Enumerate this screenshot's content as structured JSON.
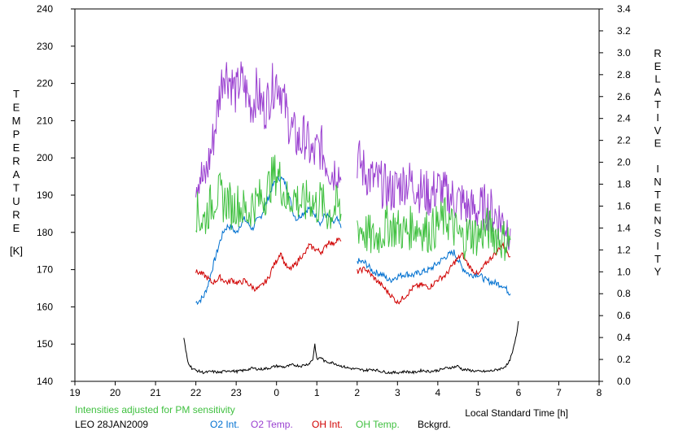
{
  "chart_data": {
    "type": "line",
    "note_text": "Intensities adjusted for PM sensitivity",
    "station_text": "LEO 28JAN2009",
    "xlabel": "Local Standard Time [h]",
    "ylabel_left": "TEMPERATURE",
    "ylabel_left_unit": "[K]",
    "ylabel_right": "RELATIVE INTENSITY",
    "xlim": [
      19,
      32
    ],
    "x_tick_values": [
      19,
      20,
      21,
      22,
      23,
      24,
      25,
      26,
      27,
      28,
      29,
      30,
      31,
      32
    ],
    "x_tick_labels": [
      "19",
      "20",
      "21",
      "22",
      "23",
      "0",
      "1",
      "2",
      "3",
      "4",
      "5",
      "6",
      "7",
      "8"
    ],
    "ylim_left": [
      140,
      240
    ],
    "y_left_ticks": [
      140,
      150,
      160,
      170,
      180,
      190,
      200,
      210,
      220,
      230,
      240
    ],
    "ylim_right": [
      0,
      3.4
    ],
    "y_right_ticks": [
      "0.0",
      "0.2",
      "0.4",
      "0.6",
      "0.8",
      "1.0",
      "1.2",
      "1.4",
      "1.6",
      "1.8",
      "2.0",
      "2.2",
      "2.4",
      "2.6",
      "2.8",
      "3.0",
      "3.2",
      "3.4"
    ],
    "grid": false,
    "legend_position": "bottom",
    "series": [
      {
        "name": "O2 Int.",
        "color": "#0070d0",
        "axis": "right",
        "segments": [
          {
            "x": [
              22.0,
              22.1,
              22.2,
              22.3,
              22.4,
              22.5,
              22.6,
              22.7,
              22.8,
              22.9,
              23.0,
              23.1,
              23.2,
              23.3,
              23.4,
              23.5,
              23.6,
              23.7,
              23.8,
              23.9,
              24.0,
              24.1,
              24.2,
              24.3,
              24.4,
              24.5,
              24.6,
              24.7,
              24.8,
              24.9,
              25.0,
              25.1,
              25.2,
              25.3,
              25.4,
              25.5,
              25.6
            ],
            "y": [
              0.72,
              0.74,
              0.78,
              0.88,
              1.02,
              1.15,
              1.28,
              1.38,
              1.42,
              1.4,
              1.35,
              1.43,
              1.48,
              1.44,
              1.39,
              1.46,
              1.5,
              1.58,
              1.68,
              1.78,
              1.84,
              1.86,
              1.82,
              1.72,
              1.55,
              1.48,
              1.52,
              1.55,
              1.58,
              1.55,
              1.5,
              1.44,
              1.52,
              1.5,
              1.44,
              1.48,
              1.4
            ]
          },
          {
            "x": [
              26.0,
              26.2,
              26.4,
              26.6,
              26.8,
              27.0,
              27.2,
              27.4,
              27.6,
              27.8,
              28.0,
              28.2,
              28.4,
              28.6,
              28.8,
              29.0,
              29.2,
              29.4,
              29.6,
              29.8
            ],
            "y": [
              1.1,
              1.08,
              1.0,
              0.98,
              0.92,
              0.96,
              0.98,
              0.97,
              1.0,
              1.02,
              1.08,
              1.14,
              1.18,
              1.04,
              0.97,
              0.98,
              0.92,
              0.9,
              0.88,
              0.8
            ]
          }
        ]
      },
      {
        "name": "O2 Temp.",
        "color": "#9a40d0",
        "axis": "left",
        "segments": [
          {
            "x": [
              22.0,
              22.1,
              22.2,
              22.3,
              22.4,
              22.5,
              22.6,
              22.7,
              22.8,
              22.9,
              23.0,
              23.1,
              23.2,
              23.3,
              23.4,
              23.5,
              23.6,
              23.7,
              23.8,
              23.9,
              24.0,
              24.1,
              24.2,
              24.3,
              24.4,
              24.5,
              24.6,
              24.7,
              24.8,
              24.9,
              25.0,
              25.1,
              25.2,
              25.3,
              25.4,
              25.5,
              25.6
            ],
            "y": [
              194,
              196,
              193,
              198,
              203,
              210,
              218,
              224,
              222,
              220,
              217,
              221,
              219,
              216,
              214,
              218,
              215,
              213,
              216,
              219,
              221,
              219,
              214,
              210,
              207,
              205,
              204,
              206,
              203,
              200,
              202,
              203,
              200,
              198,
              196,
              198,
              194
            ]
          },
          {
            "x": [
              26.0,
              26.2,
              26.4,
              26.6,
              26.8,
              27.0,
              27.2,
              27.4,
              27.6,
              27.8,
              28.0,
              28.2,
              28.4,
              28.6,
              28.8,
              29.0,
              29.2,
              29.4,
              29.6,
              29.8
            ],
            "y": [
              200,
              196,
              194,
              193,
              191,
              192,
              194,
              193,
              191,
              190,
              192,
              190,
              189,
              188,
              186,
              186,
              187,
              185,
              183,
              181
            ]
          }
        ]
      },
      {
        "name": "OH Int.",
        "color": "#d00000",
        "axis": "right",
        "segments": [
          {
            "x": [
              22.0,
              22.1,
              22.2,
              22.3,
              22.4,
              22.5,
              22.6,
              22.7,
              22.8,
              22.9,
              23.0,
              23.1,
              23.2,
              23.3,
              23.4,
              23.5,
              23.6,
              23.7,
              23.8,
              23.9,
              24.0,
              24.1,
              24.2,
              24.3,
              24.4,
              24.5,
              24.6,
              24.7,
              24.8,
              24.9,
              25.0,
              25.1,
              25.2,
              25.3,
              25.4,
              25.5,
              25.6
            ],
            "y": [
              1.0,
              0.99,
              0.97,
              0.94,
              0.9,
              0.92,
              0.95,
              0.92,
              0.9,
              0.93,
              0.9,
              0.9,
              0.92,
              0.89,
              0.86,
              0.84,
              0.86,
              0.9,
              0.94,
              1.04,
              1.1,
              1.18,
              1.08,
              1.02,
              1.04,
              1.08,
              1.14,
              1.16,
              1.24,
              1.22,
              1.2,
              1.18,
              1.22,
              1.28,
              1.25,
              1.3,
              1.28
            ]
          },
          {
            "x": [
              26.0,
              26.2,
              26.4,
              26.6,
              26.8,
              27.0,
              27.2,
              27.4,
              27.6,
              27.8,
              28.0,
              28.2,
              28.4,
              28.6,
              28.8,
              29.0,
              29.2,
              29.4,
              29.6,
              29.8
            ],
            "y": [
              1.0,
              1.03,
              0.95,
              0.88,
              0.8,
              0.72,
              0.78,
              0.86,
              0.88,
              0.86,
              0.93,
              0.97,
              1.08,
              1.16,
              1.04,
              0.97,
              1.08,
              1.16,
              1.25,
              1.14
            ]
          }
        ]
      },
      {
        "name": "OH Temp.",
        "color": "#40c040",
        "axis": "left",
        "segments": [
          {
            "x": [
              22.0,
              22.1,
              22.2,
              22.3,
              22.4,
              22.5,
              22.6,
              22.7,
              22.8,
              22.9,
              23.0,
              23.1,
              23.2,
              23.3,
              23.4,
              23.5,
              23.6,
              23.7,
              23.8,
              23.9,
              24.0,
              24.1,
              24.2,
              24.3,
              24.4,
              24.5,
              24.6,
              24.7,
              24.8,
              24.9,
              25.0,
              25.1,
              25.2,
              25.3,
              25.4,
              25.5,
              25.6
            ],
            "y": [
              186,
              184,
              183,
              186,
              188,
              190,
              190,
              188,
              189,
              186,
              188,
              187,
              186,
              185,
              188,
              188,
              189,
              190,
              192,
              195,
              196,
              194,
              190,
              188,
              190,
              189,
              188,
              187,
              190,
              188,
              187,
              189,
              186,
              185,
              186,
              187,
              185
            ]
          },
          {
            "x": [
              26.0,
              26.2,
              26.4,
              26.6,
              26.8,
              27.0,
              27.2,
              27.4,
              27.6,
              27.8,
              28.0,
              28.2,
              28.4,
              28.6,
              28.8,
              29.0,
              29.2,
              29.4,
              29.6,
              29.8
            ],
            "y": [
              182,
              180,
              178,
              180,
              182,
              181,
              180,
              182,
              181,
              180,
              182,
              184,
              181,
              178,
              180,
              179,
              181,
              180,
              178,
              178
            ]
          }
        ]
      },
      {
        "name": "Bckgrd.",
        "color": "#000000",
        "axis": "right",
        "segments": [
          {
            "x": [
              21.7,
              21.75,
              21.8,
              21.9,
              22.0,
              22.2,
              22.4,
              22.6,
              22.8,
              23.0,
              23.2,
              23.4,
              23.6,
              23.8,
              24.0,
              24.2,
              24.4,
              24.6,
              24.8,
              24.9,
              24.95,
              25.0,
              25.1,
              25.2,
              25.4,
              25.6,
              25.8,
              26.0,
              26.2,
              26.4,
              26.6,
              26.8,
              27.0,
              27.2,
              27.4,
              27.6,
              27.8,
              28.0,
              28.2,
              28.4,
              28.5,
              28.6,
              28.8,
              29.0,
              29.2,
              29.4,
              29.6,
              29.75,
              29.85,
              29.95,
              30.0
            ],
            "y": [
              0.4,
              0.28,
              0.18,
              0.12,
              0.1,
              0.08,
              0.09,
              0.08,
              0.1,
              0.09,
              0.1,
              0.12,
              0.11,
              0.12,
              0.14,
              0.13,
              0.15,
              0.14,
              0.16,
              0.2,
              0.34,
              0.2,
              0.22,
              0.18,
              0.17,
              0.14,
              0.12,
              0.11,
              0.1,
              0.11,
              0.09,
              0.08,
              0.08,
              0.09,
              0.08,
              0.1,
              0.09,
              0.1,
              0.12,
              0.13,
              0.14,
              0.11,
              0.1,
              0.09,
              0.09,
              0.1,
              0.12,
              0.16,
              0.26,
              0.42,
              0.55
            ]
          }
        ]
      }
    ]
  }
}
